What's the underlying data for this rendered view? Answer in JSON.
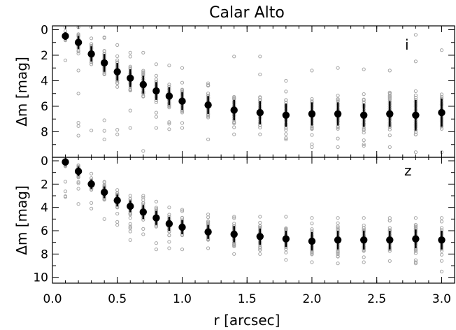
{
  "chart_data": {
    "type": "scatter",
    "title": "Calar Alto",
    "xlabel": "r [arcsec]",
    "xlim": [
      0.0,
      3.1
    ],
    "x_ticks": [
      "0.0",
      "0.5",
      "1.0",
      "1.5",
      "2.0",
      "2.5",
      "3.0"
    ],
    "x_tick_values": [
      0.0,
      0.5,
      1.0,
      1.5,
      2.0,
      2.5,
      3.0
    ],
    "colors": {
      "individual": "#a6a6a6",
      "mean": "#000000"
    },
    "panels": [
      {
        "label": "i",
        "ylabel": "Δm [mag]",
        "ylim": [
          10,
          -0.3
        ],
        "inverted": true,
        "y_ticks": [
          "0",
          "2",
          "4",
          "6",
          "8"
        ],
        "y_tick_values": [
          0,
          2,
          4,
          6,
          8
        ],
        "means": [
          {
            "r": 0.1,
            "dm": 0.5,
            "err": 0.3
          },
          {
            "r": 0.2,
            "dm": 1.0,
            "err": 0.5
          },
          {
            "r": 0.3,
            "dm": 1.9,
            "err": 0.6
          },
          {
            "r": 0.4,
            "dm": 2.6,
            "err": 0.7
          },
          {
            "r": 0.5,
            "dm": 3.3,
            "err": 0.7
          },
          {
            "r": 0.6,
            "dm": 3.8,
            "err": 0.7
          },
          {
            "r": 0.7,
            "dm": 4.3,
            "err": 0.7
          },
          {
            "r": 0.8,
            "dm": 4.8,
            "err": 0.7
          },
          {
            "r": 0.9,
            "dm": 5.2,
            "err": 0.7
          },
          {
            "r": 1.0,
            "dm": 5.6,
            "err": 0.7
          },
          {
            "r": 1.2,
            "dm": 5.9,
            "err": 0.7
          },
          {
            "r": 1.4,
            "dm": 6.3,
            "err": 0.8
          },
          {
            "r": 1.6,
            "dm": 6.5,
            "err": 0.9
          },
          {
            "r": 1.8,
            "dm": 6.7,
            "err": 0.9
          },
          {
            "r": 2.0,
            "dm": 6.6,
            "err": 0.9
          },
          {
            "r": 2.2,
            "dm": 6.6,
            "err": 0.9
          },
          {
            "r": 2.4,
            "dm": 6.7,
            "err": 0.9
          },
          {
            "r": 2.6,
            "dm": 6.6,
            "err": 1.0
          },
          {
            "r": 2.8,
            "dm": 6.7,
            "err": 1.2
          },
          {
            "r": 3.0,
            "dm": 6.5,
            "err": 1.1
          }
        ],
        "scatter_ranges": [
          {
            "r": 0.1,
            "min": -0.3,
            "max": 2.4
          },
          {
            "r": 0.2,
            "min": -0.3,
            "max": 8.3
          },
          {
            "r": 0.3,
            "min": -0.2,
            "max": 7.9
          },
          {
            "r": 0.4,
            "min": 0.6,
            "max": 8.6
          },
          {
            "r": 0.5,
            "min": 1.2,
            "max": 8.2
          },
          {
            "r": 0.6,
            "min": 1.8,
            "max": 7.7
          },
          {
            "r": 0.7,
            "min": 1.8,
            "max": 9.5
          },
          {
            "r": 0.8,
            "min": 2.7,
            "max": 7.7
          },
          {
            "r": 0.9,
            "min": 2.8,
            "max": 7.8
          },
          {
            "r": 1.0,
            "min": 3.0,
            "max": 7.7
          },
          {
            "r": 1.2,
            "min": 4.2,
            "max": 8.6
          },
          {
            "r": 1.4,
            "min": 2.1,
            "max": 8.2
          },
          {
            "r": 1.6,
            "min": 2.1,
            "max": 8.2
          },
          {
            "r": 1.8,
            "min": 4.0,
            "max": 8.6
          },
          {
            "r": 2.0,
            "min": 3.2,
            "max": 9.2
          },
          {
            "r": 2.2,
            "min": 3.0,
            "max": 9.2
          },
          {
            "r": 2.4,
            "min": 3.1,
            "max": 9.1
          },
          {
            "r": 2.6,
            "min": 3.2,
            "max": 9.2
          },
          {
            "r": 2.8,
            "min": 0.4,
            "max": 9.6
          },
          {
            "r": 3.0,
            "min": 1.6,
            "max": 9.6
          }
        ]
      },
      {
        "label": "z",
        "ylabel": "Δm [mag]",
        "ylim": [
          10.5,
          -0.3
        ],
        "inverted": true,
        "y_ticks": [
          "0",
          "2",
          "4",
          "6",
          "8",
          "10"
        ],
        "y_tick_values": [
          0,
          2,
          4,
          6,
          8,
          10
        ],
        "means": [
          {
            "r": 0.1,
            "dm": 0.1,
            "err": 0.3
          },
          {
            "r": 0.2,
            "dm": 0.9,
            "err": 0.4
          },
          {
            "r": 0.3,
            "dm": 2.0,
            "err": 0.4
          },
          {
            "r": 0.4,
            "dm": 2.7,
            "err": 0.5
          },
          {
            "r": 0.5,
            "dm": 3.4,
            "err": 0.5
          },
          {
            "r": 0.6,
            "dm": 3.9,
            "err": 0.5
          },
          {
            "r": 0.7,
            "dm": 4.4,
            "err": 0.6
          },
          {
            "r": 0.8,
            "dm": 4.9,
            "err": 0.6
          },
          {
            "r": 0.9,
            "dm": 5.4,
            "err": 0.6
          },
          {
            "r": 1.0,
            "dm": 5.7,
            "err": 0.6
          },
          {
            "r": 1.2,
            "dm": 6.1,
            "err": 0.6
          },
          {
            "r": 1.4,
            "dm": 6.3,
            "err": 0.7
          },
          {
            "r": 1.6,
            "dm": 6.5,
            "err": 0.7
          },
          {
            "r": 1.8,
            "dm": 6.7,
            "err": 0.7
          },
          {
            "r": 2.0,
            "dm": 6.9,
            "err": 0.8
          },
          {
            "r": 2.2,
            "dm": 6.8,
            "err": 0.8
          },
          {
            "r": 2.4,
            "dm": 6.8,
            "err": 0.8
          },
          {
            "r": 2.6,
            "dm": 6.8,
            "err": 0.8
          },
          {
            "r": 2.8,
            "dm": 6.7,
            "err": 0.8
          },
          {
            "r": 3.0,
            "dm": 6.8,
            "err": 0.8
          }
        ],
        "scatter_ranges": [
          {
            "r": 0.1,
            "min": 0.0,
            "max": 3.1
          },
          {
            "r": 0.2,
            "min": 0.4,
            "max": 3.7
          },
          {
            "r": 0.3,
            "min": 1.1,
            "max": 4.1
          },
          {
            "r": 0.4,
            "min": 1.8,
            "max": 5.0
          },
          {
            "r": 0.5,
            "min": 2.5,
            "max": 5.5
          },
          {
            "r": 0.6,
            "min": 3.0,
            "max": 6.8
          },
          {
            "r": 0.7,
            "min": 3.0,
            "max": 6.3
          },
          {
            "r": 0.8,
            "min": 3.5,
            "max": 7.6
          },
          {
            "r": 0.9,
            "min": 4.0,
            "max": 7.5
          },
          {
            "r": 1.0,
            "min": 4.2,
            "max": 7.6
          },
          {
            "r": 1.2,
            "min": 4.6,
            "max": 7.5
          },
          {
            "r": 1.4,
            "min": 4.8,
            "max": 8.0
          },
          {
            "r": 1.6,
            "min": 4.8,
            "max": 8.0
          },
          {
            "r": 1.8,
            "min": 4.8,
            "max": 8.5
          },
          {
            "r": 2.0,
            "min": 4.9,
            "max": 8.7
          },
          {
            "r": 2.2,
            "min": 4.9,
            "max": 8.8
          },
          {
            "r": 2.4,
            "min": 4.9,
            "max": 8.7
          },
          {
            "r": 2.6,
            "min": 4.9,
            "max": 8.6
          },
          {
            "r": 2.8,
            "min": 4.9,
            "max": 8.8
          },
          {
            "r": 3.0,
            "min": 4.9,
            "max": 9.5
          }
        ]
      }
    ]
  }
}
